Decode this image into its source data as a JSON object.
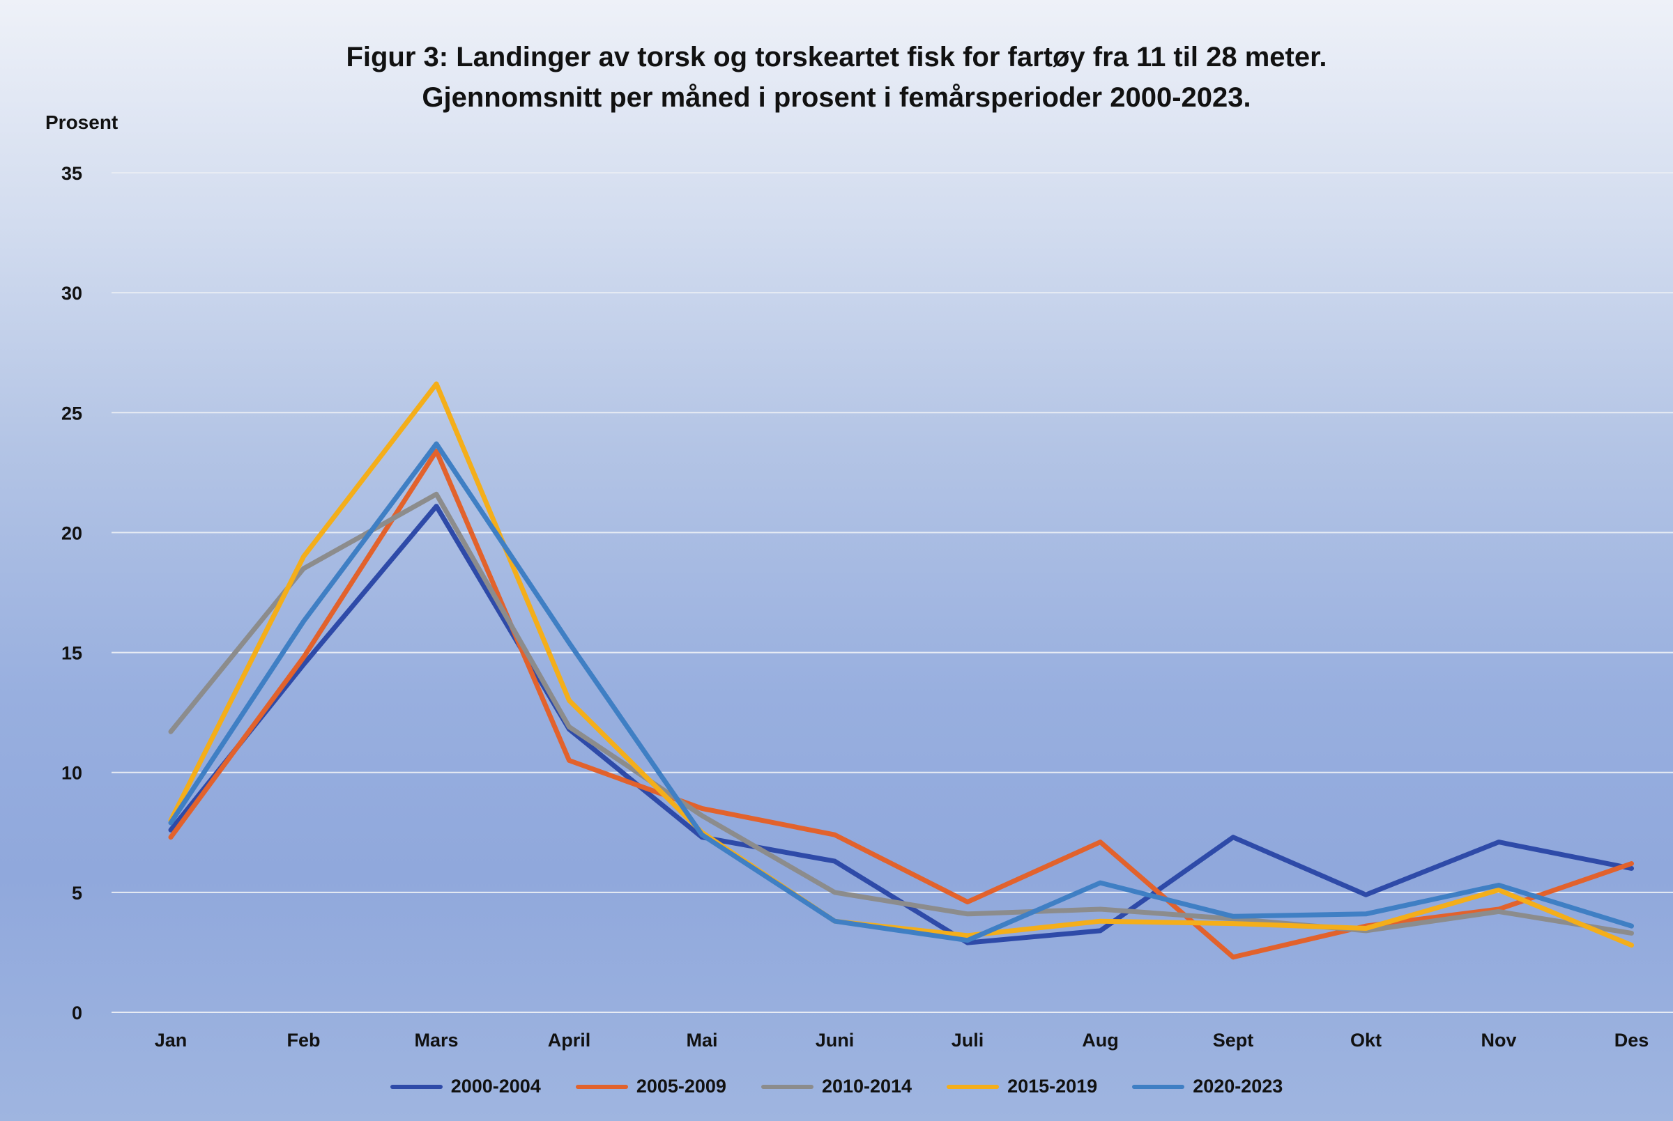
{
  "chart_data": {
    "type": "line",
    "title": "Figur 3: Landinger av torsk og torskeartet fisk for fartøy fra 11 til 28 meter.",
    "subtitle": "Gjennomsnitt per måned i prosent i femårsperioder 2000-2023.",
    "ylabel": "Prosent",
    "xlabel": "",
    "ylim": [
      0,
      35
    ],
    "yticks": [
      "0",
      "5",
      "10",
      "15",
      "20",
      "25",
      "30",
      "35"
    ],
    "grid": true,
    "legend_position": "bottom",
    "categories": [
      "Jan",
      "Feb",
      "Mars",
      "April",
      "Mai",
      "Juni",
      "Juli",
      "Aug",
      "Sept",
      "Okt",
      "Nov",
      "Des"
    ],
    "series": [
      {
        "name": "2000-2004",
        "color": "#2e4aa8",
        "values": [
          7.6,
          14.5,
          21.1,
          11.8,
          7.3,
          6.3,
          2.9,
          3.4,
          7.3,
          4.9,
          7.1,
          6.0
        ]
      },
      {
        "name": "2005-2009",
        "color": "#e2622c",
        "values": [
          7.3,
          14.8,
          23.4,
          10.5,
          8.5,
          7.4,
          4.6,
          7.1,
          2.3,
          3.6,
          4.3,
          6.2
        ]
      },
      {
        "name": "2010-2014",
        "color": "#8c8c8c",
        "values": [
          11.7,
          18.5,
          21.6,
          11.9,
          8.2,
          5.0,
          4.1,
          4.3,
          3.9,
          3.4,
          4.2,
          3.3
        ]
      },
      {
        "name": "2015-2019",
        "color": "#f4ae1a",
        "values": [
          8.0,
          19.0,
          26.2,
          13.0,
          7.5,
          3.8,
          3.2,
          3.8,
          3.7,
          3.5,
          5.1,
          2.8
        ]
      },
      {
        "name": "2020-2023",
        "color": "#3f7fc4",
        "values": [
          7.9,
          16.3,
          23.7,
          15.4,
          7.4,
          3.8,
          3.0,
          5.4,
          4.0,
          4.1,
          5.3,
          3.6
        ]
      }
    ]
  }
}
